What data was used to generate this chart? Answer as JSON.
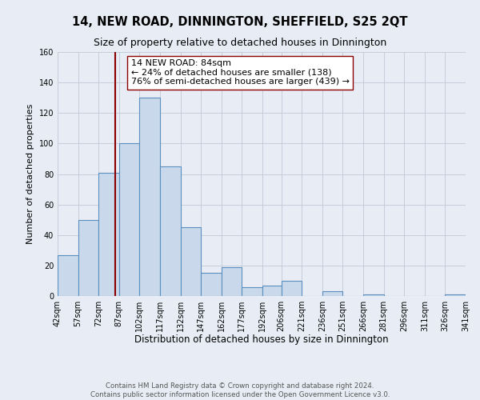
{
  "title": "14, NEW ROAD, DINNINGTON, SHEFFIELD, S25 2QT",
  "subtitle": "Size of property relative to detached houses in Dinnington",
  "xlabel": "Distribution of detached houses by size in Dinnington",
  "ylabel": "Number of detached properties",
  "bin_edges": [
    42,
    57,
    72,
    87,
    102,
    117,
    132,
    147,
    162,
    177,
    192,
    206,
    221,
    236,
    251,
    266,
    281,
    296,
    311,
    326,
    341
  ],
  "bar_heights": [
    27,
    50,
    81,
    100,
    130,
    85,
    45,
    15,
    19,
    6,
    7,
    10,
    0,
    3,
    0,
    1,
    0,
    0,
    0,
    1
  ],
  "bar_facecolor": "#c9d9eb",
  "bar_edgecolor": "#5a8fc0",
  "bar_linewidth": 0.8,
  "vline_x": 84,
  "vline_color": "#8b0000",
  "vline_linewidth": 1.5,
  "annotation_text": "14 NEW ROAD: 84sqm\n← 24% of detached houses are smaller (138)\n76% of semi-detached houses are larger (439) →",
  "annotation_box_edgecolor": "#8b0000",
  "annotation_box_facecolor": "white",
  "ylim": [
    0,
    160
  ],
  "yticks": [
    0,
    20,
    40,
    60,
    80,
    100,
    120,
    140,
    160
  ],
  "grid_color": "#c0c8d8",
  "background_color": "#e8edf5",
  "footer_line1": "Contains HM Land Registry data © Crown copyright and database right 2024.",
  "footer_line2": "Contains public sector information licensed under the Open Government Licence v3.0.",
  "title_fontsize": 10.5,
  "subtitle_fontsize": 9,
  "xlabel_fontsize": 8.5,
  "ylabel_fontsize": 8,
  "tick_fontsize": 7,
  "annotation_fontsize": 8,
  "footer_fontsize": 6.2
}
